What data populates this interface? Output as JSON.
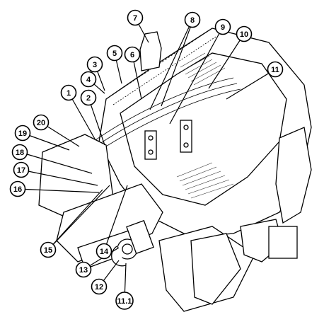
{
  "callouts": [
    {
      "id": "c1",
      "label": "1"
    },
    {
      "id": "c2",
      "label": "2"
    },
    {
      "id": "c3",
      "label": "3"
    },
    {
      "id": "c4",
      "label": "4"
    },
    {
      "id": "c5",
      "label": "5"
    },
    {
      "id": "c6",
      "label": "6"
    },
    {
      "id": "c7",
      "label": "7"
    },
    {
      "id": "c8",
      "label": "8"
    },
    {
      "id": "c9",
      "label": "9"
    },
    {
      "id": "c10",
      "label": "10"
    },
    {
      "id": "c11",
      "label": "11"
    },
    {
      "id": "c12",
      "label": "12"
    },
    {
      "id": "c13",
      "label": "13"
    },
    {
      "id": "c14",
      "label": "14"
    },
    {
      "id": "c15",
      "label": "15"
    },
    {
      "id": "c16",
      "label": "16"
    },
    {
      "id": "c17",
      "label": "17"
    },
    {
      "id": "c18",
      "label": "18"
    },
    {
      "id": "c19",
      "label": "19"
    },
    {
      "id": "c20",
      "label": "20"
    },
    {
      "id": "c111",
      "label": "11.1"
    }
  ]
}
